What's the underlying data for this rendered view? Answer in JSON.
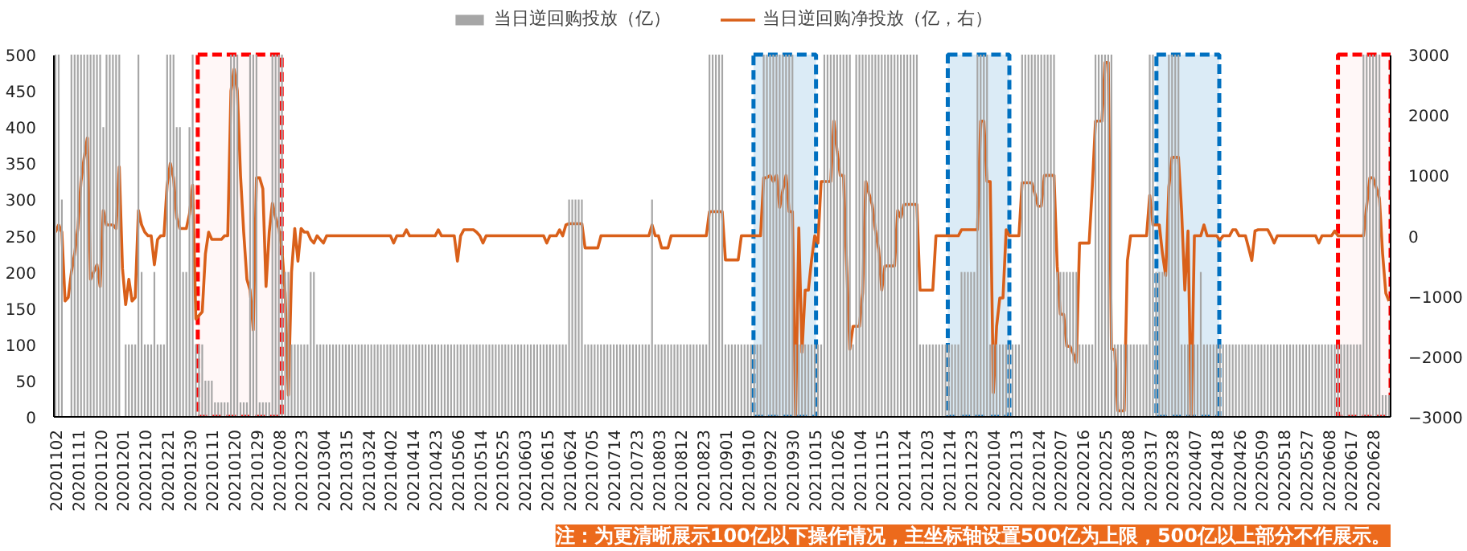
{
  "chart_data": {
    "type": "bar",
    "categories": [
      "20201102",
      null,
      null,
      null,
      null,
      null,
      null,
      "20201111",
      null,
      null,
      null,
      null,
      null,
      null,
      "20201120",
      null,
      null,
      null,
      null,
      null,
      null,
      "20201201",
      null,
      null,
      null,
      null,
      null,
      null,
      "20201210",
      null,
      null,
      null,
      null,
      null,
      null,
      "20201221",
      null,
      null,
      null,
      null,
      null,
      null,
      "20201230",
      null,
      null,
      null,
      null,
      null,
      null,
      "20210111",
      null,
      null,
      null,
      null,
      null,
      null,
      "20210120",
      null,
      null,
      null,
      null,
      null,
      null,
      "20210129",
      null,
      null,
      null,
      null,
      null,
      null,
      "20210208",
      null,
      null,
      null,
      null,
      null,
      null,
      "20210223",
      null,
      null,
      null,
      null,
      null,
      null,
      "20210304",
      null,
      null,
      null,
      null,
      null,
      null,
      "20210315",
      null,
      null,
      null,
      null,
      null,
      null,
      "20210324",
      null,
      null,
      null,
      null,
      null,
      null,
      "20210402",
      null,
      null,
      null,
      null,
      null,
      null,
      "20210414",
      null,
      null,
      null,
      null,
      null,
      null,
      "20210423",
      null,
      null,
      null,
      null,
      null,
      null,
      "20210506",
      null,
      null,
      null,
      null,
      null,
      null,
      "20210514",
      null,
      null,
      null,
      null,
      null,
      null,
      "20210525",
      null,
      null,
      null,
      null,
      null,
      null,
      "20210603",
      null,
      null,
      null,
      null,
      null,
      null,
      "20210615",
      null,
      null,
      null,
      null,
      null,
      null,
      "20210624",
      null,
      null,
      null,
      null,
      null,
      null,
      "20210705",
      null,
      null,
      null,
      null,
      null,
      null,
      "20210714",
      null,
      null,
      null,
      null,
      null,
      null,
      "20210723",
      null,
      null,
      null,
      null,
      null,
      null,
      "20210803",
      null,
      null,
      null,
      null,
      null,
      null,
      "20210812",
      null,
      null,
      null,
      null,
      null,
      null,
      "20210823",
      null,
      null,
      null,
      null,
      null,
      null,
      "20210901",
      null,
      null,
      null,
      null,
      null,
      null,
      "20210910",
      null,
      null,
      null,
      null,
      null,
      null,
      "20210922",
      null,
      null,
      null,
      null,
      null,
      null,
      "20210930",
      null,
      null,
      null,
      null,
      null,
      null,
      "20211015",
      null,
      null,
      null,
      null,
      null,
      null,
      "20211026",
      null,
      null,
      null,
      null,
      null,
      null,
      "20211104",
      null,
      null,
      null,
      null,
      null,
      null,
      "20211115",
      null,
      null,
      null,
      null,
      null,
      null,
      "20211124",
      null,
      null,
      null,
      null,
      null,
      null,
      "20211203",
      null,
      null,
      null,
      null,
      null,
      null,
      "20211214",
      null,
      null,
      null,
      null,
      null,
      null,
      "20211223",
      null,
      null,
      null,
      null,
      null,
      null,
      "20220104",
      null,
      null,
      null,
      null,
      null,
      null,
      "20220113",
      null,
      null,
      null,
      null,
      null,
      null,
      "20220124",
      null,
      null,
      null,
      null,
      null,
      null,
      "20220207",
      null,
      null,
      null,
      null,
      null,
      null,
      "20220216",
      null,
      null,
      null,
      null,
      null,
      null,
      "20220225",
      null,
      null,
      null,
      null,
      null,
      null,
      "20220308",
      null,
      null,
      null,
      null,
      null,
      null,
      "20220317",
      null,
      null,
      null,
      null,
      null,
      null,
      "20220328",
      null,
      null,
      null,
      null,
      null,
      null,
      "20220407",
      null,
      null,
      null,
      null,
      null,
      null,
      "20220418",
      null,
      null,
      null,
      null,
      null,
      null,
      "20220426",
      null,
      null,
      null,
      null,
      null,
      null,
      "20220509",
      null,
      null,
      null,
      null,
      null,
      null,
      "20220518",
      null,
      null,
      null,
      null,
      null,
      null,
      "20220527",
      null,
      null,
      null,
      null,
      null,
      null,
      "20220608",
      null,
      null,
      null,
      null,
      null,
      null,
      "20220617",
      null,
      null,
      null,
      null,
      null,
      null,
      "20220628",
      null,
      null,
      null,
      null,
      null
    ],
    "series": [
      {
        "name": "当日逆回购投放（亿）",
        "color": "#a6a6a6",
        "values": [
          500,
          500,
          300,
          0,
          0,
          500,
          500,
          500,
          500,
          500,
          500,
          500,
          500,
          500,
          500,
          400,
          500,
          500,
          500,
          500,
          500,
          0,
          100,
          100,
          100,
          100,
          500,
          200,
          100,
          100,
          100,
          200,
          100,
          100,
          100,
          500,
          500,
          500,
          400,
          400,
          200,
          200,
          400,
          500,
          100,
          100,
          100,
          50,
          50,
          50,
          20,
          20,
          20,
          20,
          20,
          500,
          500,
          500,
          20,
          20,
          20,
          500,
          500,
          500,
          20,
          20,
          20,
          20,
          500,
          500,
          500,
          500,
          200,
          200,
          100,
          100,
          100,
          100,
          100,
          100,
          200,
          200,
          100,
          100,
          100,
          100,
          100,
          100,
          100,
          100,
          100,
          100,
          100,
          100,
          100,
          100,
          100,
          100,
          100,
          100,
          100,
          100,
          100,
          100,
          100,
          100,
          100,
          100,
          100,
          100,
          100,
          100,
          100,
          100,
          100,
          100,
          100,
          100,
          100,
          100,
          100,
          100,
          100,
          100,
          100,
          100,
          100,
          100,
          100,
          100,
          100,
          100,
          100,
          100,
          100,
          100,
          100,
          100,
          100,
          100,
          100,
          100,
          100,
          100,
          100,
          100,
          100,
          100,
          100,
          100,
          100,
          100,
          100,
          100,
          100,
          100,
          100,
          100,
          100,
          100,
          100,
          300,
          300,
          300,
          300,
          300,
          100,
          100,
          100,
          100,
          100,
          100,
          100,
          100,
          100,
          100,
          100,
          100,
          100,
          100,
          100,
          100,
          100,
          100,
          100,
          100,
          100,
          300,
          100,
          100,
          100,
          100,
          100,
          100,
          100,
          100,
          100,
          100,
          100,
          100,
          100,
          100,
          100,
          100,
          100,
          500,
          500,
          500,
          500,
          500,
          100,
          100,
          100,
          100,
          100,
          100,
          100,
          100,
          100,
          100,
          100,
          100,
          500,
          500,
          500,
          500,
          500,
          500,
          500,
          500,
          500,
          500,
          100,
          100,
          100,
          100,
          100,
          100,
          100,
          100,
          100,
          500,
          500,
          500,
          500,
          500,
          500,
          500,
          500,
          500,
          100,
          500,
          500,
          500,
          500,
          500,
          500,
          500,
          500,
          500,
          500,
          500,
          500,
          500,
          500,
          500,
          500,
          500,
          500,
          500,
          500,
          100,
          100,
          100,
          100,
          100,
          100,
          100,
          100,
          100,
          100,
          100,
          100,
          100,
          200,
          200,
          200,
          200,
          200,
          500,
          500,
          500,
          500,
          100,
          100,
          100,
          100,
          100,
          100,
          100,
          100,
          100,
          100,
          500,
          500,
          500,
          500,
          500,
          500,
          500,
          500,
          500,
          500,
          500,
          200,
          200,
          200,
          200,
          200,
          200,
          200,
          100,
          100,
          100,
          100,
          100,
          500,
          500,
          500,
          500,
          500,
          500,
          100,
          100,
          100,
          100,
          100,
          100,
          100,
          100,
          100,
          100,
          100,
          500,
          500,
          200,
          200,
          200,
          200,
          500,
          500,
          500,
          500,
          100,
          100,
          100,
          100,
          100,
          100,
          200,
          100,
          100,
          100,
          100,
          100,
          100,
          100,
          100,
          100,
          100,
          100,
          100,
          100,
          100,
          100,
          100,
          100,
          100,
          100,
          100,
          100,
          100,
          100,
          100,
          100,
          100,
          100,
          100,
          100,
          100,
          100,
          100,
          100,
          100,
          100,
          100,
          100,
          100,
          100,
          100,
          100,
          100,
          100,
          100,
          100,
          100,
          100,
          100,
          100,
          100,
          500,
          500,
          500,
          500,
          500,
          500,
          30,
          30,
          30
        ]
      },
      {
        "name": "当日逆回购净投放（亿，右）",
        "type": "line",
        "axis": "y2",
        "color": "#d9601a",
        "values": [
          60,
          180,
          60,
          -1080,
          -1020,
          -600,
          -300,
          120,
          900,
          1300,
          1620,
          -720,
          -600,
          -480,
          -840,
          420,
          180,
          180,
          180,
          120,
          1140,
          -540,
          -1140,
          -720,
          -1080,
          -1020,
          420,
          180,
          60,
          0,
          0,
          -480,
          -60,
          0,
          0,
          840,
          1200,
          960,
          300,
          120,
          120,
          120,
          360,
          840,
          -1380,
          -1320,
          -1260,
          -300,
          60,
          -60,
          -60,
          -60,
          -60,
          0,
          0,
          2400,
          2760,
          2400,
          1000,
          60,
          -720,
          -900,
          -1560,
          960,
          960,
          780,
          -840,
          60,
          540,
          300,
          120,
          -240,
          -960,
          -2640,
          -600,
          120,
          -420,
          120,
          60,
          60,
          -60,
          -120,
          0,
          -60,
          -120,
          0,
          0,
          0,
          0,
          0,
          0,
          0,
          0,
          0,
          0,
          0,
          0,
          0,
          0,
          0,
          0,
          0,
          0,
          0,
          0,
          0,
          -120,
          0,
          0,
          0,
          100,
          0,
          0,
          0,
          0,
          0,
          0,
          0,
          0,
          0,
          100,
          0,
          0,
          0,
          0,
          0,
          -420,
          0,
          100,
          100,
          100,
          100,
          60,
          0,
          -120,
          0,
          0,
          0,
          0,
          0,
          0,
          0,
          0,
          0,
          0,
          0,
          0,
          0,
          0,
          0,
          0,
          0,
          0,
          0,
          -120,
          0,
          0,
          0,
          100,
          0,
          180,
          200,
          200,
          200,
          200,
          200,
          -200,
          -200,
          -200,
          -200,
          -200,
          0,
          0,
          0,
          0,
          0,
          0,
          0,
          0,
          0,
          0,
          0,
          0,
          0,
          0,
          0,
          0,
          180,
          0,
          0,
          -200,
          -200,
          -200,
          0,
          0,
          0,
          0,
          0,
          0,
          0,
          0,
          0,
          0,
          0,
          0,
          400,
          400,
          400,
          400,
          400,
          -400,
          -400,
          -400,
          -400,
          -400,
          0,
          0,
          0,
          0,
          0,
          0,
          0,
          960,
          960,
          1000,
          900,
          1000,
          470,
          760,
          1000,
          400,
          400,
          -3000,
          130,
          -1930,
          -900,
          -900,
          -400,
          0,
          -120,
          900,
          900,
          900,
          900,
          1900,
          1400,
          1000,
          1000,
          -500,
          -1880,
          -1500,
          -1500,
          -1500,
          -950,
          900,
          700,
          520,
          100,
          -220,
          -900,
          -500,
          -500,
          -500,
          -500,
          420,
          300,
          520,
          520,
          520,
          520,
          520,
          -900,
          -900,
          -900,
          -900,
          -900,
          0,
          0,
          0,
          0,
          0,
          0,
          0,
          0,
          100,
          100,
          100,
          100,
          100,
          100,
          1900,
          1900,
          900,
          900,
          -2600,
          -1500,
          -1030,
          -1030,
          100,
          0,
          0,
          0,
          0,
          880,
          880,
          880,
          880,
          700,
          490,
          490,
          1000,
          1000,
          1000,
          1000,
          -500,
          -1300,
          -1300,
          -1830,
          -1830,
          -1950,
          -2100,
          -120,
          -120,
          -120,
          -120,
          810,
          1900,
          1900,
          1900,
          2870,
          2870,
          -1880,
          -1880,
          -2900,
          -2900,
          -2900,
          -410,
          0,
          0,
          0,
          0,
          0,
          0,
          670,
          180,
          180,
          180,
          -300,
          -660,
          810,
          1300,
          1300,
          1300,
          400,
          -900,
          80,
          -3000,
          0,
          0,
          0,
          180,
          0,
          0,
          0,
          0,
          -70,
          0,
          0,
          0,
          100,
          100,
          0,
          0,
          0,
          -200,
          -410,
          80,
          100,
          100,
          100,
          100,
          0,
          -120,
          0,
          0,
          0,
          0,
          0,
          0,
          0,
          0,
          0,
          0,
          0,
          0,
          0,
          -120,
          0,
          0,
          0,
          0,
          80,
          0,
          0,
          0,
          0,
          0,
          0,
          0,
          0,
          0,
          500,
          960,
          960,
          800,
          620,
          -300,
          -950,
          -1080
        ]
      }
    ],
    "ylim": [
      0,
      500
    ],
    "yticks": [
      0,
      50,
      100,
      150,
      200,
      250,
      300,
      350,
      400,
      450,
      500
    ],
    "y2lim": [
      -3000,
      3000
    ],
    "y2ticks": [
      -3000,
      -2000,
      -1000,
      0,
      1000,
      2000,
      3000
    ],
    "legend": "top",
    "grid": false,
    "annotations": [
      "注：为更清晰展示100亿以下操作情况，主坐标轴设置500亿为上限，500亿以上部分不作展示。"
    ]
  }
}
